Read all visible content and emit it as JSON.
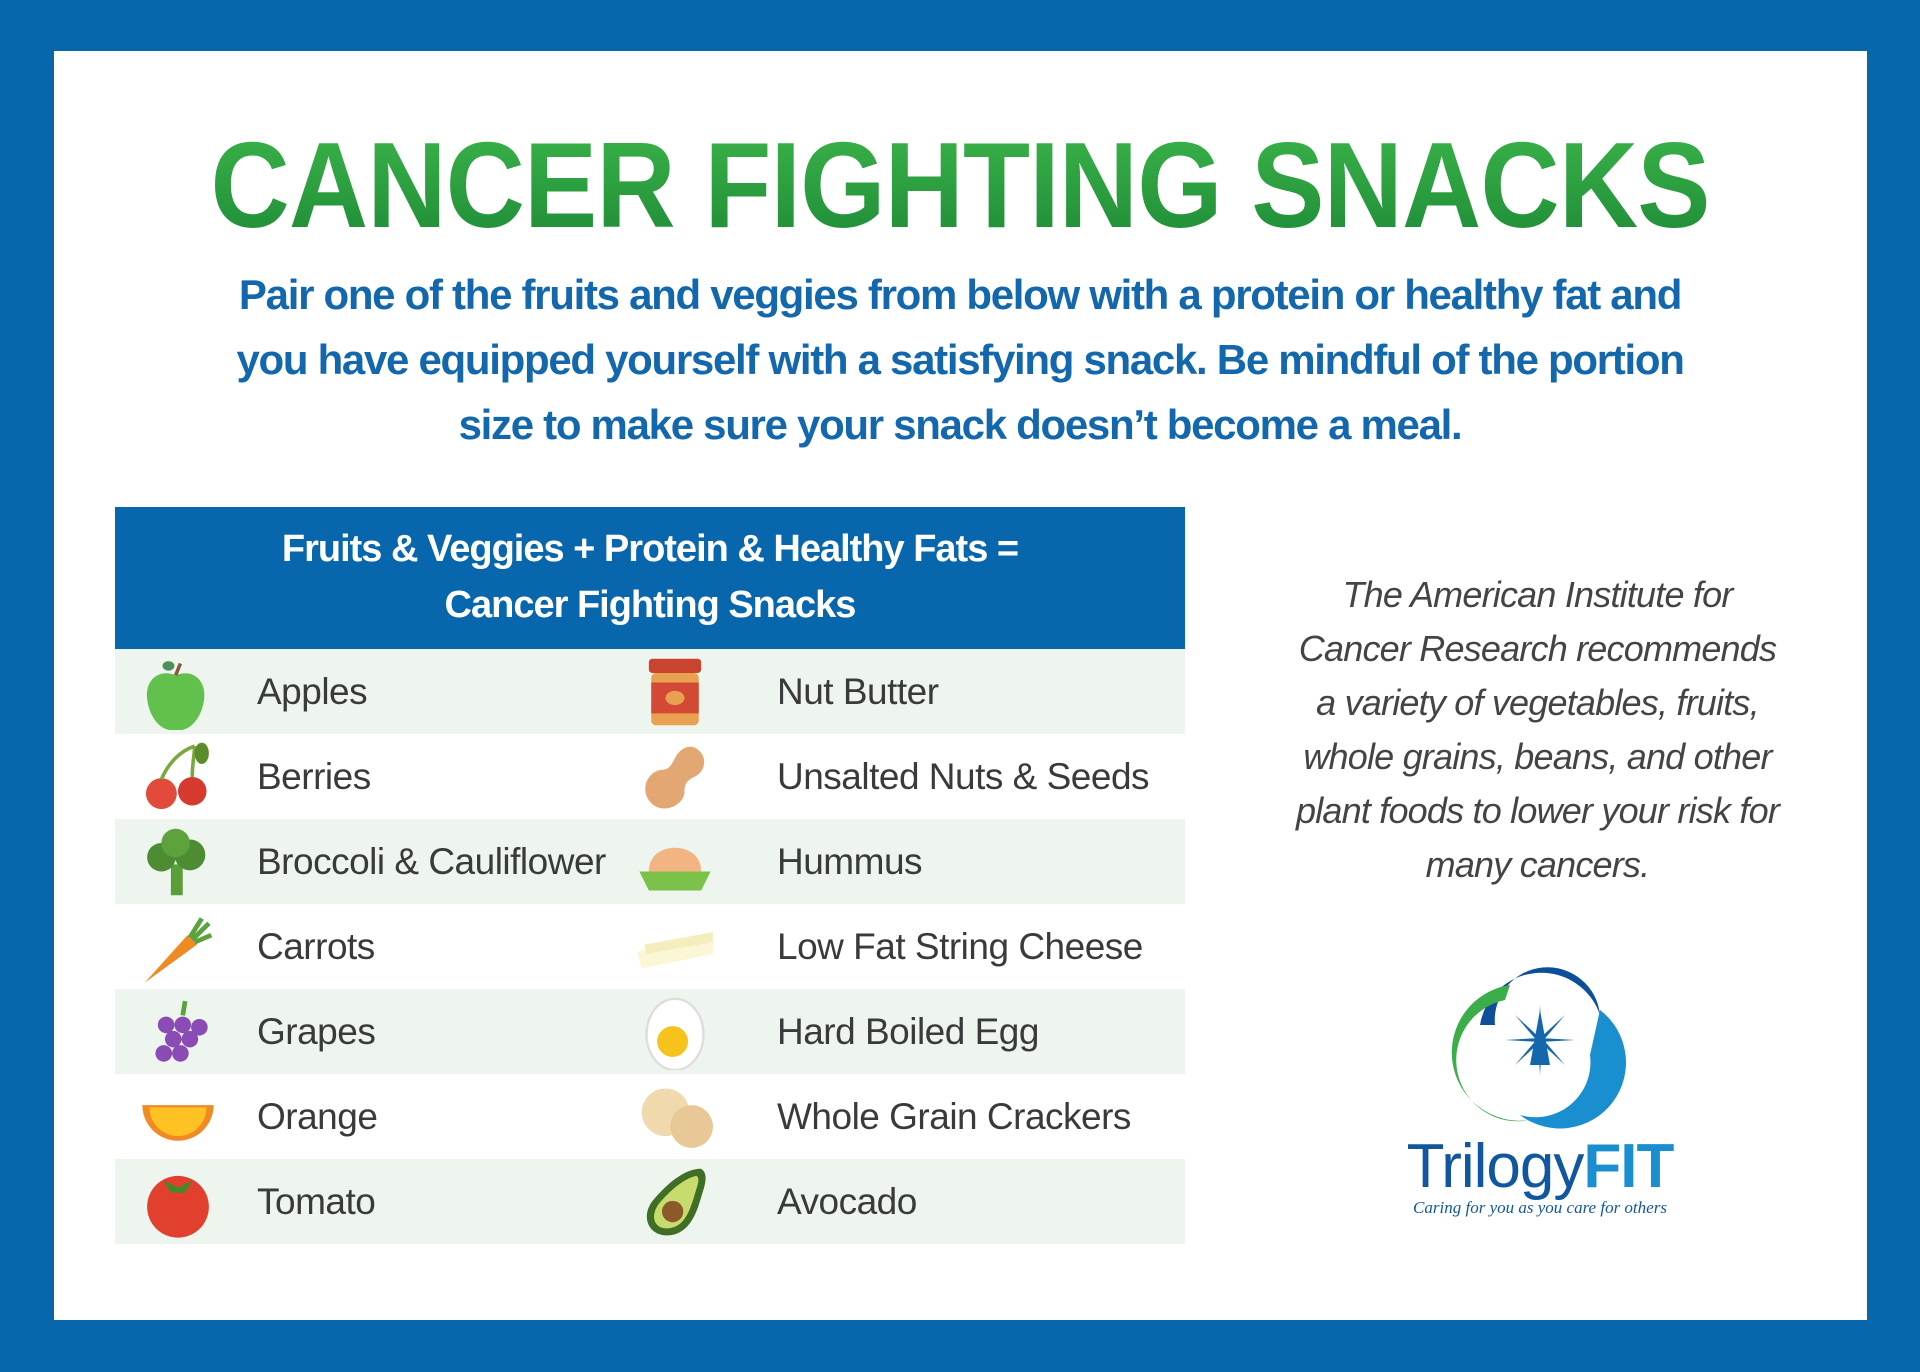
{
  "title": "CANCER FIGHTING SNACKS",
  "intro_lines": [
    "Pair one of the fruits and veggies from below with a protein or healthy fat and",
    "you have equipped yourself with a satisfying snack. Be mindful of the portion",
    "size to make sure your snack doesn’t become a meal."
  ],
  "table": {
    "header_lines": [
      "Fruits & Veggies + Protein & Healthy Fats =",
      "Cancer Fighting Snacks"
    ],
    "rows": [
      {
        "left": "Apples",
        "left_icon": "apple-icon",
        "right": "Nut Butter",
        "right_icon": "nut-butter-jar-icon"
      },
      {
        "left": "Berries",
        "left_icon": "cherries-icon",
        "right": "Unsalted Nuts & Seeds",
        "right_icon": "peanut-icon"
      },
      {
        "left": "Broccoli & Cauliflower",
        "left_icon": "broccoli-icon",
        "right": "Hummus",
        "right_icon": "hummus-icon"
      },
      {
        "left": "Carrots",
        "left_icon": "carrot-icon",
        "right": "Low Fat String Cheese",
        "right_icon": "string-cheese-icon"
      },
      {
        "left": "Grapes",
        "left_icon": "grapes-icon",
        "right": "Hard Boiled Egg",
        "right_icon": "egg-icon"
      },
      {
        "left": "Orange",
        "left_icon": "orange-slice-icon",
        "right": "Whole Grain Crackers",
        "right_icon": "crackers-icon"
      },
      {
        "left": "Tomato",
        "left_icon": "tomato-icon",
        "right": "Avocado",
        "right_icon": "avocado-icon"
      }
    ]
  },
  "aicr_lines": [
    "The American Institute for",
    "Cancer Research recommends",
    "a variety of vegetables, fruits,",
    "whole grains, beans, and other",
    "plant foods to lower your risk for",
    "many cancers."
  ],
  "logo": {
    "brand_a": "Trilogy",
    "brand_b": "FIT",
    "tagline": "Caring for you as you care for others"
  },
  "colors": {
    "border": "#0866ac",
    "title": "#239a3c",
    "intro": "#1367ad",
    "row_alt": "#eef4ee"
  }
}
